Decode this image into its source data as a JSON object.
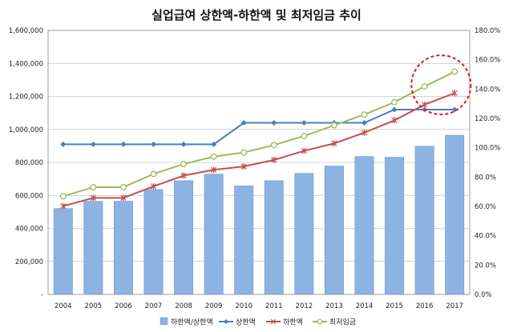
{
  "chart_data": {
    "type": "bar+line",
    "title": "실업급여 상한액-하한액 및 최저임금 추이",
    "categories": [
      "2004",
      "2005",
      "2006",
      "2007",
      "2008",
      "2009",
      "2010",
      "2011",
      "2012",
      "2013",
      "2014",
      "2015",
      "2016",
      "2017"
    ],
    "y_left": {
      "range": [
        0,
        1600000
      ],
      "ticks": [
        "-",
        "200,000",
        "400,000",
        "600,000",
        "800,000",
        "1,000,000",
        "1,200,000",
        "1,400,000",
        "1,600,000"
      ]
    },
    "y_right": {
      "range": [
        0,
        180
      ],
      "ticks": [
        "0.0%",
        "20.0%",
        "40.0%",
        "60.0%",
        "80.0%",
        "100.0%",
        "120.0%",
        "140.0%",
        "160.0%",
        "180.0%"
      ]
    },
    "series": [
      {
        "name": "하한액/상한액",
        "kind": "bar",
        "axis": "right",
        "color": "#8db3e2",
        "values": [
          58.5,
          63.5,
          63.5,
          71.5,
          77.5,
          82,
          74,
          77.5,
          82.5,
          87.5,
          94,
          93.5,
          101,
          108.5
        ]
      },
      {
        "name": "상한액",
        "kind": "line",
        "axis": "left",
        "color": "#4a7ebf",
        "marker": "diamond",
        "values": [
          910000,
          910000,
          910000,
          910000,
          910000,
          910000,
          1040000,
          1040000,
          1040000,
          1040000,
          1040000,
          1120000,
          1120000,
          1120000
        ]
      },
      {
        "name": "하한액",
        "kind": "line",
        "axis": "left",
        "color": "#c0504d",
        "marker": "star",
        "values": [
          535000,
          585000,
          585000,
          655000,
          720000,
          755000,
          775000,
          815000,
          870000,
          915000,
          980000,
          1055000,
          1150000,
          1220000
        ]
      },
      {
        "name": "최저임금",
        "kind": "line",
        "axis": "left",
        "color": "#9bbb59",
        "marker": "circle",
        "values": [
          595000,
          650000,
          650000,
          730000,
          790000,
          835000,
          860000,
          905000,
          960000,
          1025000,
          1090000,
          1165000,
          1260000,
          1350000
        ]
      }
    ],
    "legend_position": "bottom",
    "gridlines": true
  }
}
